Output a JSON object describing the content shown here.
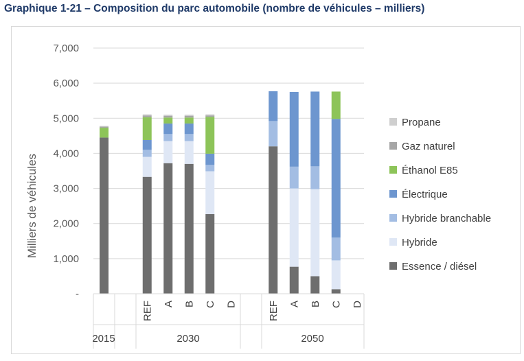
{
  "title": "Graphique 1-21 – Composition du parc automobile (nombre de véhicules – milliers)",
  "chart_data": {
    "type": "bar",
    "stacked": true,
    "ylabel": "Milliers de véhicules",
    "ylim": [
      0,
      7000
    ],
    "yticks": [
      0,
      1000,
      2000,
      3000,
      4000,
      5000,
      6000,
      7000
    ],
    "ytick_labels": [
      "-",
      "1,000",
      "2,000",
      "3,000",
      "4,000",
      "5,000",
      "6,000",
      "7,000"
    ],
    "grid": true,
    "legend_position": "right",
    "groups": [
      {
        "label": "2015",
        "categories": [
          ""
        ]
      },
      {
        "label": "2030",
        "categories": [
          "REF",
          "A",
          "B",
          "C",
          "D"
        ]
      },
      {
        "label": "2050",
        "categories": [
          "REF",
          "A",
          "B",
          "C",
          "D"
        ]
      }
    ],
    "series": [
      {
        "name": "Essence / diésel",
        "color": "#6e6e6e",
        "values": [
          4450,
          3330,
          3720,
          3700,
          2270,
          0,
          4200,
          770,
          500,
          130,
          0
        ]
      },
      {
        "name": "Hybride",
        "color": "#dfe7f5",
        "values": [
          0,
          570,
          630,
          650,
          1220,
          0,
          0,
          2230,
          2480,
          820,
          0
        ]
      },
      {
        "name": "Hybride branchable",
        "color": "#a3bde3",
        "values": [
          0,
          200,
          200,
          200,
          180,
          0,
          720,
          620,
          650,
          650,
          0
        ]
      },
      {
        "name": "Électrique",
        "color": "#6d96cf",
        "values": [
          0,
          280,
          300,
          300,
          320,
          0,
          850,
          2130,
          2130,
          3380,
          0
        ]
      },
      {
        "name": "Éthanol E85",
        "color": "#8dc459",
        "values": [
          280,
          650,
          170,
          170,
          1050,
          0,
          0,
          0,
          0,
          780,
          0
        ]
      },
      {
        "name": "Gaz naturel",
        "color": "#a6a6a6",
        "values": [
          30,
          50,
          50,
          50,
          40,
          0,
          0,
          0,
          0,
          0,
          0
        ]
      },
      {
        "name": "Propane",
        "color": "#cfcfcf",
        "values": [
          20,
          30,
          30,
          30,
          30,
          0,
          0,
          0,
          0,
          0,
          0
        ]
      }
    ]
  }
}
